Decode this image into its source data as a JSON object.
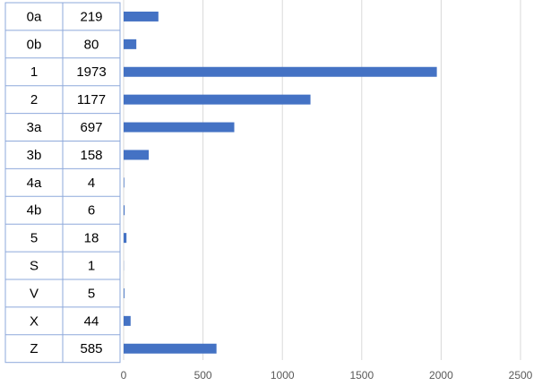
{
  "chart_data": {
    "type": "bar",
    "orientation": "horizontal",
    "categories": [
      "0a",
      "0b",
      "1",
      "2",
      "3a",
      "3b",
      "4a",
      "4b",
      "5",
      "S",
      "V",
      "X",
      "Z"
    ],
    "values": [
      219,
      80,
      1973,
      1177,
      697,
      158,
      4,
      6,
      18,
      1,
      5,
      44,
      585
    ],
    "xlim": [
      0,
      2500
    ],
    "x_ticks": [
      "0",
      "500",
      "1000",
      "1500",
      "2000",
      "2500"
    ],
    "grid": true,
    "legend": "none",
    "title": "",
    "xlabel": "",
    "ylabel": "",
    "bar_color": "#4472C4",
    "grid_color": "#D9D9D9",
    "table_border_color": "#8EA9DB"
  }
}
